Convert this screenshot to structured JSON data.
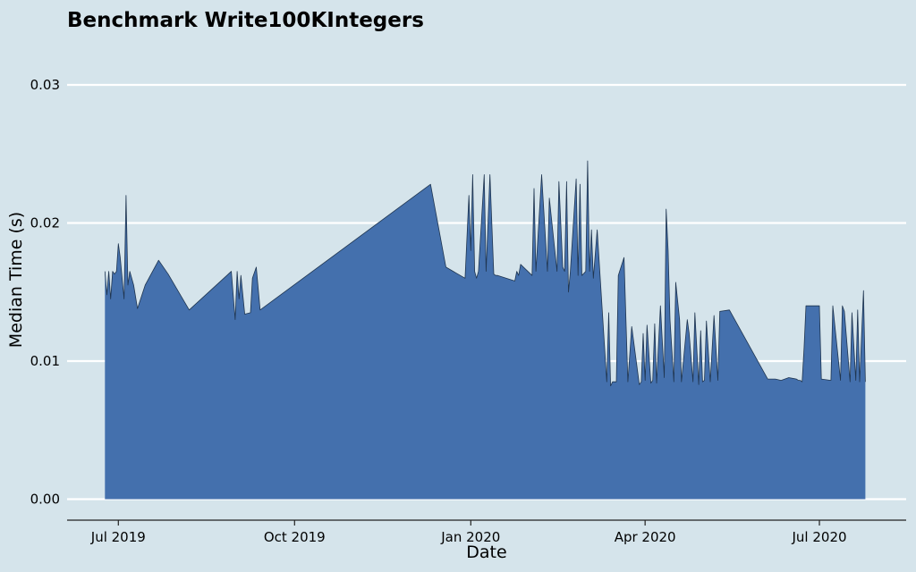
{
  "chart_data": {
    "type": "area",
    "title": "Benchmark Write100KIntegers",
    "xlabel": "Date",
    "ylabel": "Median Time (s)",
    "ylim": [
      0,
      0.032
    ],
    "xlim": [
      "2019-06-01",
      "2020-08-26"
    ],
    "y_ticks": [
      0.0,
      0.01,
      0.02,
      0.03
    ],
    "y_tick_labels": [
      "0.00",
      "0.01",
      "0.02",
      "0.03"
    ],
    "x_ticks": [
      "2019-07-01",
      "2019-10-01",
      "2020-01-01",
      "2020-04-01",
      "2020-07-01"
    ],
    "x_tick_labels": [
      "Jul 2019",
      "Oct 2019",
      "Jan 2020",
      "Apr 2020",
      "Jul 2020"
    ],
    "grid": "horizontal",
    "colors": {
      "background": "#d5e4eb",
      "fill": "#4470ad",
      "line": "#1f3550",
      "grid": "#ffffff",
      "axis": "#222222"
    },
    "series": [
      {
        "x": [
          "2019-06-24",
          "2019-06-25",
          "2019-06-26",
          "2019-06-27",
          "2019-06-28",
          "2019-06-29",
          "2019-06-30",
          "2019-07-01",
          "2019-07-02",
          "2019-07-04",
          "2019-07-05",
          "2019-07-06",
          "2019-07-07",
          "2019-07-09",
          "2019-07-11",
          "2019-07-15",
          "2019-07-22",
          "2019-07-27",
          "2019-08-07",
          "2019-08-29",
          "2019-08-31",
          "2019-09-01",
          "2019-09-02",
          "2019-09-03",
          "2019-09-05",
          "2019-09-08",
          "2019-09-09",
          "2019-09-11",
          "2019-09-13",
          "2019-12-11",
          "2019-12-19",
          "2019-12-29",
          "2019-12-31",
          "2020-01-01",
          "2020-01-02",
          "2020-01-03",
          "2020-01-04",
          "2020-01-05",
          "2020-01-08",
          "2020-01-09",
          "2020-01-11",
          "2020-01-13",
          "2020-01-14",
          "2020-01-15",
          "2020-01-24",
          "2020-01-25",
          "2020-01-26",
          "2020-01-27",
          "2020-02-02",
          "2020-02-03",
          "2020-02-04",
          "2020-02-07",
          "2020-02-10",
          "2020-02-11",
          "2020-02-15",
          "2020-02-16",
          "2020-02-18",
          "2020-02-19",
          "2020-02-20",
          "2020-02-21",
          "2020-02-22",
          "2020-02-25",
          "2020-02-26",
          "2020-02-27",
          "2020-02-28",
          "2020-03-01",
          "2020-03-02",
          "2020-03-03",
          "2020-03-04",
          "2020-03-05",
          "2020-03-07",
          "2020-03-12",
          "2020-03-13",
          "2020-03-14",
          "2020-03-15",
          "2020-03-17",
          "2020-03-18",
          "2020-03-21",
          "2020-03-23",
          "2020-03-25",
          "2020-03-29",
          "2020-03-30",
          "2020-03-31",
          "2020-04-01",
          "2020-04-02",
          "2020-04-04",
          "2020-04-05",
          "2020-04-06",
          "2020-04-07",
          "2020-04-09",
          "2020-04-11",
          "2020-04-12",
          "2020-04-13",
          "2020-04-14",
          "2020-04-16",
          "2020-04-17",
          "2020-04-19",
          "2020-04-20",
          "2020-04-23",
          "2020-04-24",
          "2020-04-26",
          "2020-04-27",
          "2020-04-29",
          "2020-04-30",
          "2020-05-01",
          "2020-05-02",
          "2020-05-03",
          "2020-05-05",
          "2020-05-07",
          "2020-05-09",
          "2020-05-10",
          "2020-05-15",
          "2020-06-04",
          "2020-06-08",
          "2020-06-11",
          "2020-06-15",
          "2020-06-19",
          "2020-06-20",
          "2020-06-21",
          "2020-06-22",
          "2020-06-23",
          "2020-06-24",
          "2020-07-01",
          "2020-07-02",
          "2020-07-07",
          "2020-07-08",
          "2020-07-12",
          "2020-07-13",
          "2020-07-14",
          "2020-07-17",
          "2020-07-18",
          "2020-07-20",
          "2020-07-21",
          "2020-07-22",
          "2020-07-24",
          "2020-07-25"
        ],
        "values": [
          0.0165,
          0.0148,
          0.0165,
          0.0145,
          0.0165,
          0.0163,
          0.0165,
          0.0185,
          0.0175,
          0.0145,
          0.022,
          0.0155,
          0.0165,
          0.0155,
          0.0138,
          0.0155,
          0.0173,
          0.0163,
          0.0137,
          0.0165,
          0.013,
          0.0165,
          0.0145,
          0.0162,
          0.0134,
          0.0135,
          0.016,
          0.0168,
          0.0137,
          0.0228,
          0.0168,
          0.016,
          0.022,
          0.018,
          0.0235,
          0.0165,
          0.016,
          0.0165,
          0.0235,
          0.0165,
          0.0235,
          0.0163,
          0.0162,
          0.0162,
          0.0158,
          0.0165,
          0.0162,
          0.017,
          0.0162,
          0.0225,
          0.0165,
          0.0235,
          0.0165,
          0.0218,
          0.0165,
          0.023,
          0.0168,
          0.0165,
          0.023,
          0.015,
          0.0165,
          0.0232,
          0.0162,
          0.0228,
          0.0162,
          0.0165,
          0.0245,
          0.0165,
          0.0195,
          0.016,
          0.0195,
          0.0085,
          0.0135,
          0.0082,
          0.0085,
          0.0085,
          0.0162,
          0.0175,
          0.0085,
          0.0125,
          0.0083,
          0.0085,
          0.012,
          0.0086,
          0.0126,
          0.0084,
          0.0086,
          0.0127,
          0.0084,
          0.014,
          0.0088,
          0.021,
          0.018,
          0.013,
          0.0085,
          0.0157,
          0.013,
          0.0085,
          0.013,
          0.012,
          0.0085,
          0.0135,
          0.0083,
          0.0122,
          0.0085,
          0.0086,
          0.0129,
          0.0085,
          0.0133,
          0.0086,
          0.0136,
          0.0137,
          0.0087,
          0.0087,
          0.0086,
          0.0088,
          0.0087,
          0.0086,
          0.0086,
          0.0085,
          0.011,
          0.014,
          0.014,
          0.0087,
          0.0086,
          0.014,
          0.0086,
          0.014,
          0.0136,
          0.0085,
          0.0135,
          0.0086,
          0.0137,
          0.0085,
          0.0151,
          0.0085
        ]
      }
    ]
  }
}
